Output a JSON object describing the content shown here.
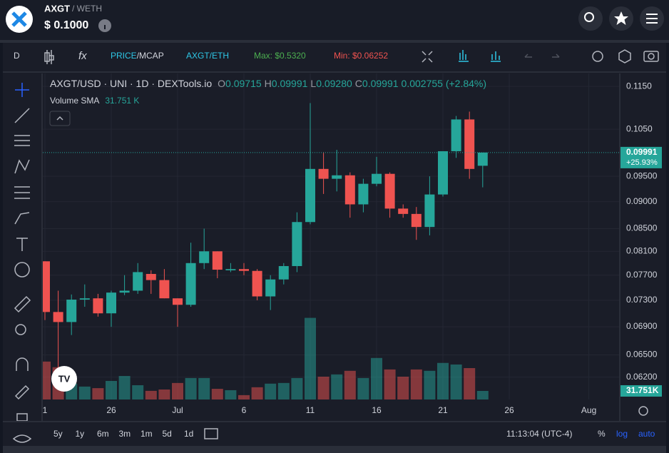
{
  "header": {
    "symbol": "AXGT",
    "quote": "/ WETH",
    "price": "$ 0.1000"
  },
  "toolbar": {
    "interval": "D",
    "price_label": "PRICE",
    "mcap_label": "/MCAP",
    "pair": "AXGT/ETH",
    "max": "Max: $0.5320",
    "min": "Min: $0.06252"
  },
  "chart_data": {
    "type": "candlestick",
    "title": "AXGT/USD · UNI · 1D · DEXTools.io",
    "ohlc_legend": {
      "o_label": "O",
      "open": "0.09715",
      "h_label": "H",
      "high": "0.09991",
      "l_label": "L",
      "low": "0.09280",
      "c_label": "C",
      "close": "0.09991",
      "change": "0.002755 (+2.84%)"
    },
    "volume_title": "Volume SMA",
    "volume_sma": "31.751 K",
    "categories": [
      "1",
      null,
      null,
      null,
      null,
      "26",
      null,
      null,
      null,
      null,
      "Jul",
      null,
      null,
      null,
      null,
      "6",
      null,
      null,
      null,
      null,
      "11",
      null,
      null,
      null,
      null,
      "16",
      null,
      null,
      null,
      null,
      "21",
      null,
      null,
      null,
      null,
      "26",
      null,
      null,
      null,
      null,
      null,
      "Aug"
    ],
    "open": [
      0.0793,
      0.0712,
      0.0697,
      0.0731,
      0.0733,
      0.071,
      0.0742,
      0.0745,
      0.0772,
      0.0762,
      0.0733,
      0.0723,
      0.079,
      0.081,
      0.0778,
      0.078,
      0.0777,
      0.0736,
      0.0763,
      0.0785,
      0.0862,
      0.0965,
      0.0945,
      0.0952,
      0.0895,
      0.0935,
      0.0955,
      0.0887,
      0.0877,
      0.0853,
      0.0914,
      0.1002,
      0.1072,
      0.09715,
      null,
      null,
      null,
      null,
      null,
      null,
      null,
      null
    ],
    "high": [
      0.0793,
      0.0745,
      0.0739,
      0.0755,
      0.074,
      0.0745,
      0.077,
      0.079,
      0.0778,
      0.078,
      0.0733,
      0.0825,
      0.085,
      0.081,
      0.079,
      0.079,
      0.078,
      0.077,
      0.079,
      0.088,
      0.111,
      0.1,
      0.1005,
      0.0958,
      0.0945,
      0.099,
      0.0958,
      0.0895,
      0.089,
      0.095,
      0.1002,
      0.108,
      0.109,
      0.09991,
      null,
      null,
      null,
      null,
      null,
      null,
      null,
      null
    ],
    "low": [
      0.07,
      0.0605,
      0.0678,
      0.072,
      0.0705,
      0.069,
      0.0738,
      0.074,
      0.074,
      0.0733,
      0.069,
      0.072,
      0.078,
      0.0765,
      0.0775,
      0.077,
      0.073,
      0.0715,
      0.0755,
      0.0775,
      0.0858,
      0.0915,
      0.092,
      0.087,
      0.088,
      0.093,
      0.087,
      0.087,
      0.083,
      0.0838,
      0.091,
      0.0988,
      0.0945,
      0.0928,
      null,
      null,
      null,
      null,
      null,
      null,
      null,
      null
    ],
    "close": [
      0.0712,
      0.0697,
      0.0731,
      0.0733,
      0.071,
      0.0742,
      0.0745,
      0.0775,
      0.0762,
      0.0733,
      0.0723,
      0.079,
      0.081,
      0.0779,
      0.078,
      0.0777,
      0.0736,
      0.0763,
      0.0785,
      0.0862,
      0.0965,
      0.0945,
      0.0952,
      0.0895,
      0.0935,
      0.0955,
      0.0887,
      0.0877,
      0.0853,
      0.0914,
      0.1002,
      0.1072,
      0.0965,
      0.09991,
      null,
      null,
      null,
      null,
      null,
      null,
      null,
      null
    ],
    "volume": [
      162,
      137,
      64,
      51,
      44,
      76,
      98,
      57,
      32,
      38,
      67,
      89,
      89,
      41,
      35,
      13,
      48,
      64,
      67,
      89,
      356,
      95,
      105,
      121,
      89,
      178,
      127,
      95,
      127,
      121,
      156,
      149,
      133,
      31.751,
      null,
      null,
      null,
      null,
      null,
      null,
      null,
      null
    ],
    "last_volume_label": "31.751K",
    "last_price_label": "0.09991",
    "last_change_label": "+25.93%",
    "up_color": "#26a69a",
    "down_color": "#ef5350",
    "ylim": [
      0.0593,
      0.1182
    ],
    "log_y": true,
    "grid": true,
    "volume_lim": [
      0,
      570
    ],
    "yticks": [
      {
        "value": 0.115,
        "label": "0.1150"
      },
      {
        "value": 0.105,
        "label": "0.1050"
      },
      {
        "value": 0.095,
        "label": "0.09500"
      },
      {
        "value": 0.09,
        "label": "0.09000"
      },
      {
        "value": 0.085,
        "label": "0.08500"
      },
      {
        "value": 0.081,
        "label": "0.08100"
      },
      {
        "value": 0.077,
        "label": "0.07700"
      },
      {
        "value": 0.073,
        "label": "0.07300"
      },
      {
        "value": 0.069,
        "label": "0.06900"
      },
      {
        "value": 0.065,
        "label": "0.06500"
      },
      {
        "value": 0.062,
        "label": "0.06200"
      }
    ]
  },
  "bottom_bar": {
    "ranges": [
      "5y",
      "1y",
      "6m",
      "3m",
      "1m",
      "5d",
      "1d"
    ],
    "time": "11:13:04 (UTC-4)",
    "percent": "%",
    "log": "log",
    "auto": "auto"
  }
}
